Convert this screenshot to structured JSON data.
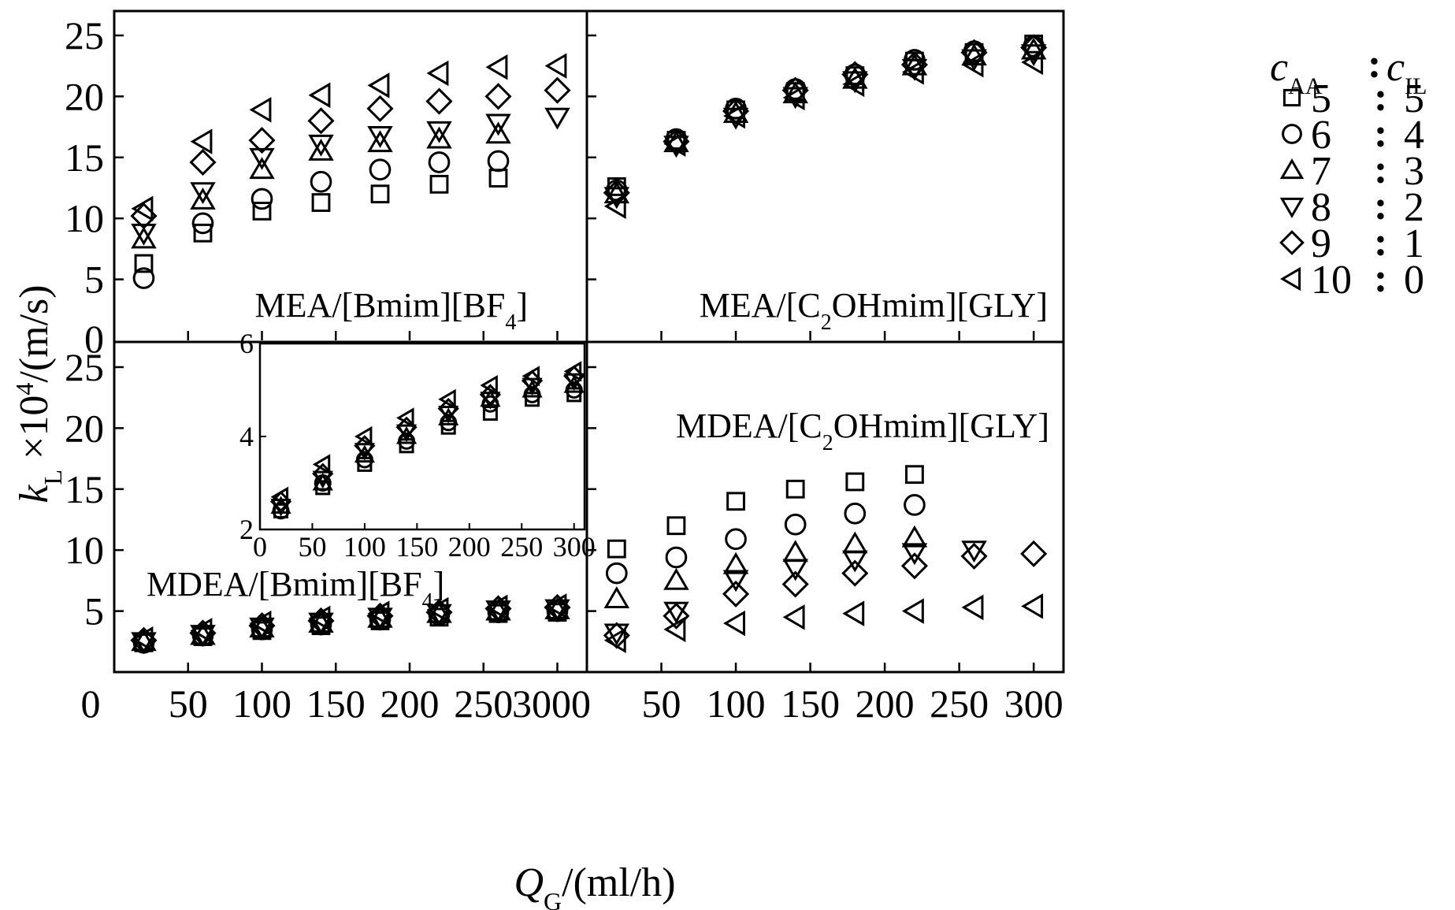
{
  "chart_data": {
    "type": "scatter",
    "xlabel": {
      "main": "Q",
      "sub": "G",
      "rest": "/(ml/h)"
    },
    "ylabel": {
      "main": "k",
      "sub": "L",
      "mid": " ×10",
      "sup": "4",
      "rest": "/(m/s)"
    },
    "legend": {
      "title": {
        "left_main": "c",
        "left_sub": "AA",
        "sep": ":",
        "right_main": "c",
        "right_sub": "IL"
      },
      "entries": [
        {
          "marker": "square",
          "aa": "5",
          "il": "5"
        },
        {
          "marker": "circle",
          "aa": "6",
          "il": "4"
        },
        {
          "marker": "triangle-up",
          "aa": "7",
          "il": "3"
        },
        {
          "marker": "triangle-down",
          "aa": "8",
          "il": "2"
        },
        {
          "marker": "diamond",
          "aa": "9",
          "il": "1"
        },
        {
          "marker": "triangle-left",
          "aa": "10",
          "il": "0"
        }
      ]
    },
    "x_tick_labels": {
      "left": [
        "0",
        "50",
        "100",
        "150",
        "200",
        "250",
        "3000"
      ],
      "right": [
        "50",
        "100",
        "150",
        "200",
        "250",
        "300"
      ]
    },
    "y_tick_labels": {
      "top": [
        "0",
        "5",
        "10",
        "15",
        "20",
        "25"
      ],
      "bottom": [
        "5",
        "10",
        "15",
        "20",
        "25"
      ]
    },
    "panels": [
      {
        "id": "mea-bmim",
        "label": {
          "pre": "MEA/[Bmim][BF",
          "sub": "4",
          "post": "]"
        },
        "xlim": [
          0,
          320
        ],
        "ylim": [
          0,
          27
        ],
        "series": [
          {
            "marker": "square",
            "x": [
              20,
              60,
              100,
              140,
              180,
              220,
              260
            ],
            "y": [
              6.3,
              8.8,
              10.6,
              11.3,
              12.0,
              12.8,
              13.3
            ]
          },
          {
            "marker": "circle",
            "x": [
              20,
              60,
              100,
              140,
              180,
              220,
              260
            ],
            "y": [
              5.1,
              9.6,
              11.6,
              13.0,
              14.0,
              14.6,
              14.7
            ]
          },
          {
            "marker": "triangle-up",
            "x": [
              20,
              60,
              100,
              140,
              180,
              220,
              260
            ],
            "y": [
              8.3,
              11.5,
              14.0,
              15.5,
              16.2,
              16.5,
              16.9
            ]
          },
          {
            "marker": "triangle-down",
            "x": [
              20,
              60,
              100,
              140,
              180,
              220,
              260,
              300
            ],
            "y": [
              8.8,
              12.2,
              15.0,
              16.1,
              16.8,
              17.2,
              17.8,
              18.3
            ]
          },
          {
            "marker": "diamond",
            "x": [
              20,
              60,
              100,
              140,
              180,
              220,
              260,
              300
            ],
            "y": [
              10.2,
              14.6,
              16.4,
              18.0,
              19.0,
              19.6,
              20.0,
              20.5
            ]
          },
          {
            "marker": "triangle-left",
            "x": [
              20,
              60,
              100,
              140,
              180,
              220,
              260,
              300
            ],
            "y": [
              10.8,
              16.3,
              18.9,
              20.1,
              20.9,
              21.9,
              22.4,
              22.5
            ]
          }
        ]
      },
      {
        "id": "mea-c2ohmim",
        "label": {
          "pre": "MEA/[C",
          "sub": "2",
          "post": "OHmim][GLY]"
        },
        "xlim": [
          0,
          320
        ],
        "ylim": [
          0,
          27
        ],
        "series": [
          {
            "marker": "square",
            "x": [
              20,
              60,
              100,
              140,
              180,
              220,
              260,
              300
            ],
            "y": [
              12.6,
              16.4,
              18.9,
              20.4,
              21.7,
              22.9,
              23.6,
              24.3
            ]
          },
          {
            "marker": "circle",
            "x": [
              20,
              60,
              100,
              140,
              180,
              220,
              260,
              300
            ],
            "y": [
              12.3,
              16.5,
              19.0,
              20.6,
              21.8,
              23.0,
              23.7,
              24.1
            ]
          },
          {
            "marker": "triangle-up",
            "x": [
              20,
              60,
              100,
              140,
              180,
              220,
              260,
              300
            ],
            "y": [
              12.0,
              16.2,
              18.6,
              20.2,
              21.4,
              22.5,
              23.3,
              23.8
            ]
          },
          {
            "marker": "triangle-down",
            "x": [
              20,
              60,
              100,
              140,
              180,
              220,
              260,
              300
            ],
            "y": [
              11.8,
              16.0,
              18.3,
              20.0,
              21.3,
              22.3,
              23.1,
              23.5
            ]
          },
          {
            "marker": "diamond",
            "x": [
              20,
              60,
              100,
              140,
              180,
              220,
              260,
              300
            ],
            "y": [
              12.1,
              16.3,
              18.8,
              20.5,
              21.8,
              22.6,
              23.6,
              24.0
            ]
          },
          {
            "marker": "triangle-left",
            "x": [
              20,
              60,
              100,
              140,
              180,
              220,
              260,
              300
            ],
            "y": [
              11.0,
              16.1,
              18.4,
              19.9,
              21.0,
              22.0,
              22.6,
              22.8
            ]
          }
        ]
      },
      {
        "id": "mdea-bmim",
        "label": {
          "pre": "MDEA/[Bmim][BF",
          "sub": "4",
          "post": "]"
        },
        "xlim": [
          0,
          320
        ],
        "ylim": [
          0,
          27
        ],
        "series": [
          {
            "marker": "square",
            "x": [
              20,
              60,
              100,
              140,
              180,
              220,
              260,
              300
            ],
            "y": [
              2.4,
              2.9,
              3.4,
              3.8,
              4.2,
              4.5,
              4.8,
              4.9
            ]
          },
          {
            "marker": "circle",
            "x": [
              20,
              60,
              100,
              140,
              180,
              220,
              260,
              300
            ],
            "y": [
              2.4,
              3.0,
              3.5,
              3.9,
              4.3,
              4.7,
              4.9,
              5.0
            ]
          },
          {
            "marker": "triangle-up",
            "x": [
              20,
              60,
              100,
              140,
              180,
              220,
              260,
              300
            ],
            "y": [
              2.5,
              3.0,
              3.6,
              4.0,
              4.4,
              4.8,
              5.0,
              5.1
            ]
          },
          {
            "marker": "triangle-down",
            "x": [
              20,
              60,
              100,
              140,
              180,
              220,
              260,
              300
            ],
            "y": [
              2.5,
              3.1,
              3.7,
              4.1,
              4.5,
              4.8,
              5.1,
              5.2
            ]
          },
          {
            "marker": "diamond",
            "x": [
              20,
              60,
              100,
              140,
              180,
              220,
              260,
              300
            ],
            "y": [
              2.6,
              3.2,
              3.8,
              4.2,
              4.6,
              4.9,
              5.2,
              5.3
            ]
          },
          {
            "marker": "triangle-left",
            "x": [
              20,
              60,
              100,
              140,
              180,
              220,
              260,
              300
            ],
            "y": [
              2.7,
              3.4,
              4.0,
              4.4,
              4.8,
              5.1,
              5.3,
              5.4
            ]
          }
        ]
      },
      {
        "id": "mdea-c2ohmim",
        "label": {
          "pre": "MDEA/[C",
          "sub": "2",
          "post": "OHmim][GLY]"
        },
        "xlim": [
          0,
          320
        ],
        "ylim": [
          0,
          27
        ],
        "series": [
          {
            "marker": "square",
            "x": [
              20,
              60,
              100,
              140,
              180,
              220
            ],
            "y": [
              10.1,
              12.0,
              14.0,
              15.0,
              15.6,
              16.2
            ]
          },
          {
            "marker": "circle",
            "x": [
              20,
              60,
              100,
              140,
              180,
              220
            ],
            "y": [
              8.1,
              9.4,
              10.9,
              12.1,
              13.0,
              13.7
            ]
          },
          {
            "marker": "triangle-up",
            "x": [
              20,
              60,
              100,
              140,
              180,
              220
            ],
            "y": [
              6.0,
              7.5,
              8.8,
              9.8,
              10.5,
              11.0
            ]
          },
          {
            "marker": "triangle-down",
            "x": [
              20,
              60,
              100,
              140,
              180,
              220,
              260
            ],
            "y": [
              3.2,
              5.0,
              7.6,
              8.5,
              9.2,
              9.8,
              10.0
            ]
          },
          {
            "marker": "diamond",
            "x": [
              20,
              60,
              100,
              140,
              180,
              220,
              260,
              300
            ],
            "y": [
              3.0,
              4.6,
              6.4,
              7.2,
              8.1,
              8.7,
              9.5,
              9.7
            ]
          },
          {
            "marker": "triangle-left",
            "x": [
              20,
              60,
              100,
              140,
              180,
              220,
              260,
              300
            ],
            "y": [
              2.6,
              3.5,
              4.0,
              4.5,
              4.8,
              5.0,
              5.3,
              5.4
            ]
          }
        ]
      }
    ],
    "inset": {
      "panel": "mdea-bmim",
      "xlim": [
        0,
        310
      ],
      "ylim": [
        2,
        6
      ],
      "x_tick_labels": [
        "0",
        "50",
        "100",
        "150",
        "200",
        "250",
        "300"
      ],
      "y_tick_labels": [
        "2",
        "4",
        "6"
      ]
    }
  }
}
